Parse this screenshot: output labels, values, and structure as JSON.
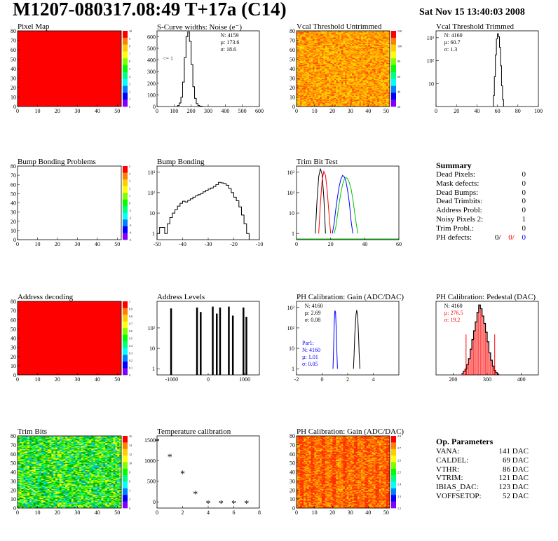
{
  "header": {
    "title": "M1207-080317.08:49 T+17a (C14)",
    "date": "Sat Nov 15 13:40:03 2008"
  },
  "colors": {
    "red": "#ff0000",
    "blue": "#0000ff",
    "green": "#00c000",
    "black": "#000000"
  },
  "chart_data": [
    {
      "id": "pixel_map",
      "type": "heatmap",
      "title": "Pixel Map",
      "xlim": [
        0,
        52
      ],
      "ylim": [
        0,
        80
      ],
      "xticks": [
        0,
        10,
        20,
        30,
        40,
        50
      ],
      "yticks": [
        0,
        10,
        20,
        30,
        40,
        50,
        60,
        70,
        80
      ],
      "fill": "#ff0000",
      "colorbar_ticks": [
        "10",
        "9",
        "8",
        "7",
        "6",
        "5",
        "4",
        "3",
        "2",
        "1",
        "0"
      ]
    },
    {
      "id": "scurve",
      "type": "bar",
      "title": "S-Curve widths: Noise (e⁻)",
      "xlim": [
        0,
        600
      ],
      "ylim": [
        0,
        650
      ],
      "xticks": [
        0,
        100,
        200,
        300,
        400,
        500,
        600
      ],
      "yticks": [
        0,
        100,
        200,
        300,
        400,
        500,
        600
      ],
      "annotation": "<= 1",
      "stats": [
        "N: 4159",
        "µ: 173.6",
        "σ: 18.6"
      ],
      "x": [
        120,
        130,
        140,
        150,
        160,
        170,
        180,
        190,
        200,
        210,
        220,
        230,
        240,
        250,
        260
      ],
      "values": [
        8,
        30,
        80,
        210,
        420,
        600,
        640,
        560,
        360,
        170,
        70,
        25,
        8,
        3,
        1
      ]
    },
    {
      "id": "vcal_untrimmed",
      "type": "heatmap",
      "title": "Vcal Threshold Untrimmed",
      "xlim": [
        0,
        52
      ],
      "ylim": [
        0,
        80
      ],
      "xticks": [
        0,
        10,
        20,
        30,
        40,
        50
      ],
      "yticks": [
        0,
        10,
        20,
        30,
        40,
        50,
        60,
        70,
        80
      ],
      "palette": [
        "#ff9a00",
        "#ffb000",
        "#ffc400",
        "#ff8000",
        "#ff5000",
        "#ffd800"
      ],
      "colorbar_ticks": [
        "120",
        "100",
        "80",
        "60",
        "40",
        "20"
      ]
    },
    {
      "id": "vcal_trimmed",
      "type": "bar",
      "title": "Vcal Threshold Trimmed",
      "log": true,
      "xlim": [
        0,
        100
      ],
      "ylim": [
        1,
        2000
      ],
      "xticks": [
        0,
        20,
        40,
        60,
        80,
        100
      ],
      "ylog_ticks": [
        "10³",
        "10²",
        "10"
      ],
      "stats": [
        "N: 4160",
        "µ: 60.7",
        "σ: 1.3"
      ],
      "x": [
        56,
        57,
        58,
        59,
        60,
        61,
        62,
        63,
        64,
        65
      ],
      "values": [
        3,
        20,
        180,
        900,
        1500,
        1100,
        380,
        60,
        8,
        2
      ]
    },
    {
      "id": "bump_problems",
      "type": "heatmap",
      "title": "Bump Bonding Problems",
      "xlim": [
        0,
        52
      ],
      "ylim": [
        0,
        80
      ],
      "xticks": [
        0,
        10,
        20,
        30,
        40,
        50
      ],
      "yticks": [
        0,
        10,
        20,
        30,
        40,
        50,
        60,
        70,
        80
      ],
      "fill": "#ffffff",
      "colorbar_ticks": [
        "5",
        "4",
        "3",
        "2",
        "1",
        "0",
        "-1",
        "-2",
        "-3",
        "-4",
        "-5"
      ]
    },
    {
      "id": "bump_bonding",
      "type": "bar",
      "title": "Bump Bonding",
      "log": true,
      "xlim": [
        -50,
        -10
      ],
      "ylim": [
        0.5,
        2000
      ],
      "xticks": [
        -50,
        -40,
        -30,
        -20,
        -10
      ],
      "ylog_ticks": [
        "10³",
        "10²",
        "10",
        "1"
      ],
      "x": [
        -50,
        -49,
        -48,
        -47,
        -46,
        -45,
        -44,
        -43,
        -42,
        -41,
        -40,
        -39,
        -38,
        -37,
        -36,
        -35,
        -34,
        -33,
        -32,
        -31,
        -30,
        -29,
        -28,
        -27,
        -26,
        -25,
        -24,
        -23,
        -22,
        -21,
        -20,
        -19,
        -18,
        -17,
        -16,
        -15
      ],
      "values": [
        1,
        2,
        2,
        1,
        3,
        6,
        10,
        15,
        22,
        30,
        38,
        35,
        42,
        50,
        60,
        70,
        80,
        90,
        110,
        130,
        150,
        170,
        200,
        250,
        320,
        300,
        280,
        230,
        160,
        100,
        60,
        40,
        20,
        8,
        3,
        1
      ]
    },
    {
      "id": "trim_bit_test",
      "type": "line",
      "title": "Trim Bit Test",
      "log": true,
      "xlim": [
        0,
        60
      ],
      "ylim": [
        0.5,
        2000
      ],
      "xticks": [
        0,
        20,
        40,
        60
      ],
      "ylog_ticks": [
        "10³",
        "10²",
        "10",
        "1"
      ],
      "series": [
        {
          "color": "#000000",
          "x": [
            11,
            12,
            13,
            14,
            15,
            16,
            17
          ],
          "values": [
            1,
            40,
            600,
            1500,
            800,
            60,
            1
          ]
        },
        {
          "color": "#ff0000",
          "x": [
            13,
            14,
            15,
            16,
            17,
            18,
            19,
            20
          ],
          "values": [
            1,
            30,
            400,
            1100,
            700,
            120,
            10,
            1
          ]
        },
        {
          "color": "#0000ff",
          "x": [
            21,
            22,
            23,
            24,
            25,
            26,
            27,
            28,
            29,
            30,
            31,
            32,
            33
          ],
          "values": [
            1,
            3,
            15,
            60,
            200,
            450,
            700,
            600,
            350,
            120,
            30,
            4,
            1
          ]
        },
        {
          "color": "#00c000",
          "x": [
            22,
            23,
            24,
            25,
            26,
            27,
            28,
            29,
            30,
            31,
            32,
            33,
            34,
            35,
            36
          ],
          "values": [
            1,
            2,
            8,
            30,
            100,
            250,
            450,
            550,
            480,
            300,
            150,
            50,
            12,
            3,
            1
          ]
        }
      ]
    },
    {
      "id": "address_decoding",
      "type": "heatmap",
      "title": "Address decoding",
      "xlim": [
        0,
        52
      ],
      "ylim": [
        0,
        80
      ],
      "xticks": [
        0,
        10,
        20,
        30,
        40,
        50
      ],
      "yticks": [
        0,
        10,
        20,
        30,
        40,
        50,
        60,
        70,
        80
      ],
      "fill": "#ff0000",
      "colorbar_ticks": [
        "1",
        "0.9",
        "0.8",
        "0.7",
        "0.6",
        "0.5",
        "0.4",
        "0.3",
        "0.2",
        "0.1",
        "0"
      ]
    },
    {
      "id": "address_levels",
      "type": "bar",
      "title": "Address Levels",
      "log": true,
      "xlim": [
        -1400,
        1400
      ],
      "ylim": [
        0.5,
        2000
      ],
      "xticks": [
        -1000,
        0,
        1000
      ],
      "ylog_ticks": [
        "10²",
        "10",
        "1"
      ],
      "x": [
        -1020,
        -310,
        -210,
        120,
        230,
        320,
        560,
        670,
        960,
        1040
      ],
      "values": [
        900,
        1000,
        600,
        1100,
        500,
        1000,
        1100,
        400,
        1000,
        350
      ]
    },
    {
      "id": "ph_gain",
      "type": "line",
      "title": "PH Calibration: Gain (ADC/DAC)",
      "log": true,
      "xlim": [
        -2,
        6
      ],
      "ylim": [
        0.5,
        2000
      ],
      "xticks": [
        -2,
        0,
        2,
        4
      ],
      "ylog_ticks": [
        "10³",
        "10²",
        "10",
        "1"
      ],
      "stats": [
        "N: 4160",
        "µ: 2.69",
        "σ: 0.08"
      ],
      "stats2": [
        "Par1:",
        "N: 4160",
        "µ: 1.01",
        "σ: 0.05"
      ],
      "series": [
        {
          "color": "#0000ff",
          "x": [
            0.85,
            0.9,
            0.95,
            1.0,
            1.05,
            1.1,
            1.15,
            1.2
          ],
          "values": [
            1,
            10,
            200,
            700,
            600,
            100,
            8,
            1
          ]
        },
        {
          "color": "#000000",
          "x": [
            2.45,
            2.5,
            2.55,
            2.6,
            2.65,
            2.7,
            2.75,
            2.8,
            2.85,
            2.9,
            2.95
          ],
          "values": [
            1,
            5,
            40,
            150,
            450,
            750,
            500,
            200,
            40,
            5,
            1
          ]
        }
      ]
    },
    {
      "id": "ph_pedestal",
      "type": "bar",
      "title": "PH Calibration: Pedestal (DAC)",
      "xlim": [
        150,
        450
      ],
      "ylim": [
        0,
        100
      ],
      "xticks": [
        200,
        300,
        400
      ],
      "yticks": [],
      "stats": [
        "N: 4160",
        "µ: 276.5",
        "σ: 19.2"
      ],
      "x": [
        225,
        230,
        235,
        240,
        245,
        250,
        255,
        260,
        265,
        270,
        275,
        280,
        285,
        290,
        295,
        300,
        305,
        310,
        315,
        320,
        325,
        330
      ],
      "values": [
        2,
        5,
        8,
        14,
        22,
        35,
        48,
        60,
        72,
        85,
        95,
        90,
        80,
        70,
        58,
        45,
        30,
        20,
        12,
        6,
        3,
        1
      ],
      "fit_markers": [
        238,
        322
      ]
    },
    {
      "id": "trim_bits",
      "type": "heatmap",
      "title": "Trim Bits",
      "xlim": [
        0,
        52
      ],
      "ylim": [
        0,
        80
      ],
      "xticks": [
        0,
        10,
        20,
        30,
        40,
        50
      ],
      "yticks": [
        0,
        10,
        20,
        30,
        40,
        50,
        60,
        70,
        80
      ],
      "palette": [
        "#00c800",
        "#40e000",
        "#80ff00",
        "#00ff80",
        "#00c0ff",
        "#ffff00",
        "#00a000"
      ],
      "colorbar_ticks": [
        "16",
        "14",
        "12",
        "10",
        "8",
        "6",
        "4",
        "2",
        "0"
      ]
    },
    {
      "id": "temperature",
      "type": "scatter",
      "title": "Temperature calibration",
      "xlim": [
        0,
        8
      ],
      "ylim": [
        -150,
        1600
      ],
      "xticks": [
        0,
        2,
        4,
        6,
        8
      ],
      "yticks": [
        0,
        500,
        1000,
        1500
      ],
      "x": [
        0,
        1,
        2,
        3,
        4,
        5,
        6,
        7
      ],
      "values": [
        1470,
        1100,
        690,
        200,
        -30,
        -30,
        -30,
        -30
      ]
    },
    {
      "id": "ph_gain_map",
      "type": "heatmap",
      "title": "PH Calibration: Gain (ADC/DAC)",
      "xlim": [
        0,
        52
      ],
      "ylim": [
        0,
        80
      ],
      "xticks": [
        0,
        10,
        20,
        30,
        40,
        50
      ],
      "yticks": [
        0,
        10,
        20,
        30,
        40,
        50,
        60,
        70,
        80
      ],
      "palette": [
        "#ff8000",
        "#ff6000",
        "#ffa000",
        "#ff3000",
        "#ffc000",
        "#ff5000"
      ],
      "colorbar_ticks": [
        "2.8",
        "2.7",
        "2.6",
        "2.5",
        "2.4",
        "2.3",
        "2.2"
      ]
    }
  ],
  "summary": {
    "title": "Summary",
    "rows": [
      {
        "label": "Dead Pixels:",
        "value": "0"
      },
      {
        "label": "Mask defects:",
        "value": "0"
      },
      {
        "label": "Dead Bumps:",
        "value": "0"
      },
      {
        "label": "Dead Trimbits:",
        "value": "0"
      },
      {
        "label": "Address Probl:",
        "value": "0"
      },
      {
        "label": "Noisy Pixels 2:",
        "value": "1"
      },
      {
        "label": "Trim Probl.:",
        "value": "0"
      }
    ],
    "ph_defects": {
      "label": "PH defects:",
      "v1": "0/",
      "v2": "0/",
      "v3": "0"
    }
  },
  "op_params": {
    "title": "Op. Parameters",
    "rows": [
      {
        "label": "VANA:",
        "value": "141 DAC"
      },
      {
        "label": "CALDEL:",
        "value": "69 DAC"
      },
      {
        "label": "VTHR:",
        "value": "86 DAC"
      },
      {
        "label": "VTRIM:",
        "value": "121 DAC"
      },
      {
        "label": "IBIAS_DAC:",
        "value": "123 DAC"
      },
      {
        "label": "VOFFSETOP:",
        "value": "52 DAC"
      }
    ]
  }
}
